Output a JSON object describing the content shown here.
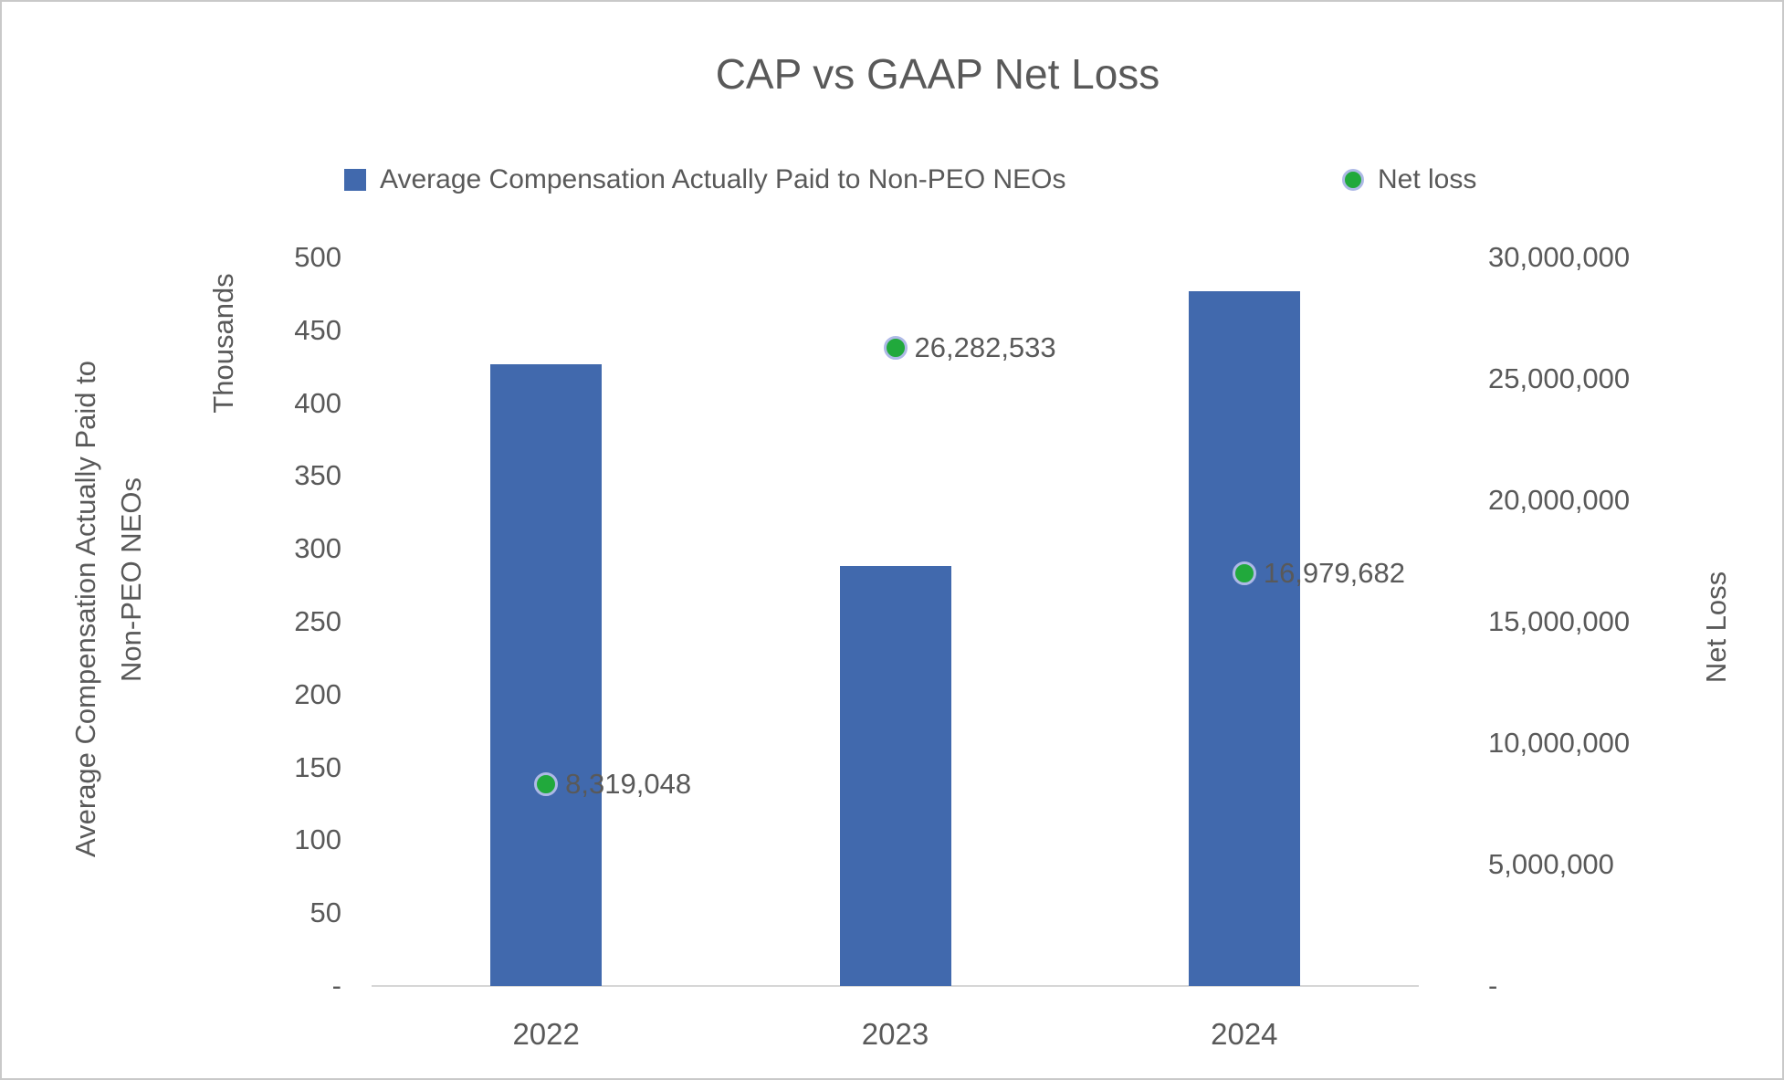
{
  "colors": {
    "bar": "#4169AD",
    "point_fill": "#21A93C",
    "point_ring": "#AEB9E6",
    "text": "#595959",
    "axis_line": "#D6D6D6"
  },
  "legend": {
    "bar_label": "Average Compensation Actually Paid to Non-PEO NEOs",
    "point_label": "Net loss"
  },
  "chart_data": {
    "type": "bar",
    "subtype": "combo-bar-with-scatter-points",
    "title": "CAP vs GAAP Net Loss",
    "categories": [
      "2022",
      "2023",
      "2024"
    ],
    "series": [
      {
        "name": "Average Compensation Actually Paid to Non-PEO NEOs",
        "type": "bar",
        "axis": "left",
        "unit": "thousands",
        "values": [
          427,
          288,
          477
        ]
      },
      {
        "name": "Net loss",
        "type": "scatter",
        "axis": "right",
        "values": [
          8319048,
          26282533,
          16979682
        ],
        "data_labels": [
          "8,319,048",
          "26,282,533",
          "16,979,682"
        ]
      }
    ],
    "left_axis": {
      "title_line1": "Average Compensation Actually Paid to",
      "title_line2": "Non-PEO NEOs",
      "units_label": "Thousands",
      "ticks": [
        "500",
        "450",
        "400",
        "350",
        "300",
        "250",
        "200",
        "150",
        "100",
        "50",
        "-"
      ],
      "min": 0,
      "max": 500,
      "step": 50
    },
    "right_axis": {
      "title": "Net Loss",
      "ticks": [
        "30,000,000",
        "25,000,000",
        "20,000,000",
        "15,000,000",
        "10,000,000",
        "5,000,000",
        "-"
      ],
      "min": 0,
      "max": 30000000,
      "step": 5000000
    },
    "x_axis": {
      "labels": [
        "2022",
        "2023",
        "2024"
      ]
    },
    "grid": false,
    "legend_position": "top"
  }
}
